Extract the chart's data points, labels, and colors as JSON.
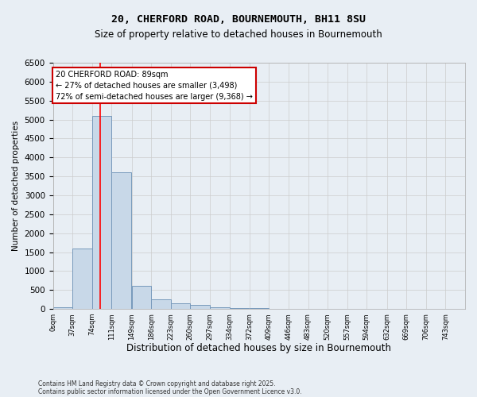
{
  "title1": "20, CHERFORD ROAD, BOURNEMOUTH, BH11 8SU",
  "title2": "Size of property relative to detached houses in Bournemouth",
  "xlabel": "Distribution of detached houses by size in Bournemouth",
  "ylabel": "Number of detached properties",
  "bin_labels": [
    "0sqm",
    "37sqm",
    "74sqm",
    "111sqm",
    "149sqm",
    "186sqm",
    "223sqm",
    "260sqm",
    "297sqm",
    "334sqm",
    "372sqm",
    "409sqm",
    "446sqm",
    "483sqm",
    "520sqm",
    "557sqm",
    "594sqm",
    "632sqm",
    "669sqm",
    "706sqm",
    "743sqm"
  ],
  "bin_edges": [
    0,
    37,
    74,
    111,
    149,
    186,
    223,
    260,
    297,
    334,
    372,
    409,
    446,
    483,
    520,
    557,
    594,
    632,
    669,
    706,
    743,
    780
  ],
  "bar_heights": [
    50,
    1600,
    5100,
    3600,
    600,
    250,
    150,
    100,
    50,
    30,
    20,
    10,
    0,
    0,
    0,
    0,
    0,
    0,
    0,
    0,
    0
  ],
  "bar_color": "#c8d8e8",
  "bar_edge_color": "#7799bb",
  "grid_color": "#cccccc",
  "red_line_x": 89,
  "ylim": [
    0,
    6500
  ],
  "yticks": [
    0,
    500,
    1000,
    1500,
    2000,
    2500,
    3000,
    3500,
    4000,
    4500,
    5000,
    5500,
    6000,
    6500
  ],
  "annotation_text": "20 CHERFORD ROAD: 89sqm\n← 27% of detached houses are smaller (3,498)\n72% of semi-detached houses are larger (9,368) →",
  "annotation_box_color": "#ffffff",
  "annotation_border_color": "#cc0000",
  "footer1": "Contains HM Land Registry data © Crown copyright and database right 2025.",
  "footer2": "Contains public sector information licensed under the Open Government Licence v3.0.",
  "bg_color": "#e8eef4",
  "fig_width": 6.0,
  "fig_height": 5.0,
  "fig_dpi": 100
}
